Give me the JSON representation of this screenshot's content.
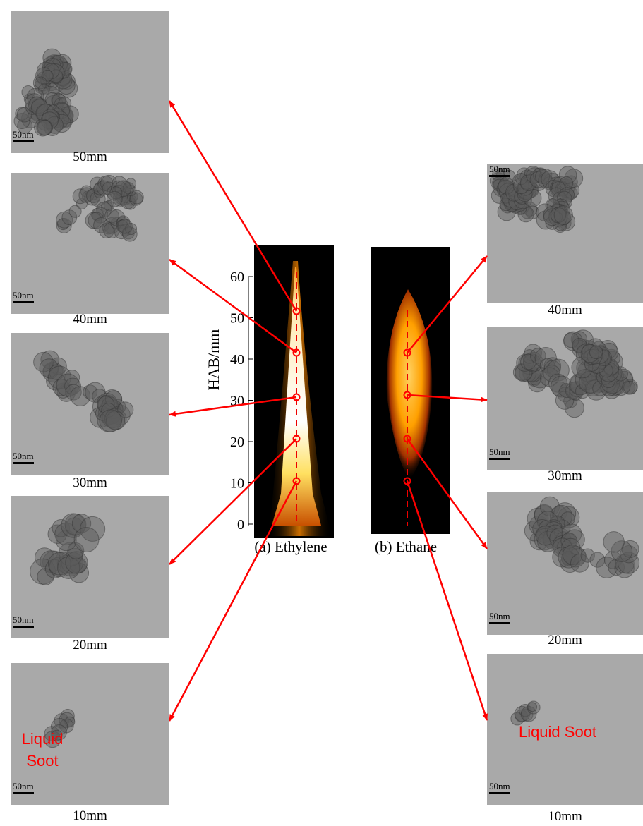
{
  "left_panels": [
    {
      "height": "50mm",
      "scale": "50nm"
    },
    {
      "height": "40mm",
      "scale": "50nm"
    },
    {
      "height": "30mm",
      "scale": "50nm"
    },
    {
      "height": "20mm",
      "scale": "50nm"
    },
    {
      "height": "10mm",
      "scale": "50nm"
    }
  ],
  "right_panels": [
    {
      "height": "40mm",
      "scale": "50nm"
    },
    {
      "height": "30mm",
      "scale": "50nm"
    },
    {
      "height": "20mm",
      "scale": "50nm"
    },
    {
      "height": "10mm",
      "scale": "50nm"
    }
  ],
  "flames": [
    {
      "caption": "(a) Ethylene"
    },
    {
      "caption": "(b) Ethane"
    }
  ],
  "hab_axis": {
    "label": "HAB/mm",
    "ticks": [
      0,
      10,
      20,
      30,
      40,
      50,
      60
    ]
  },
  "annotations": {
    "left": [
      "Liquid",
      "Soot"
    ],
    "right": "Liquid Soot"
  }
}
